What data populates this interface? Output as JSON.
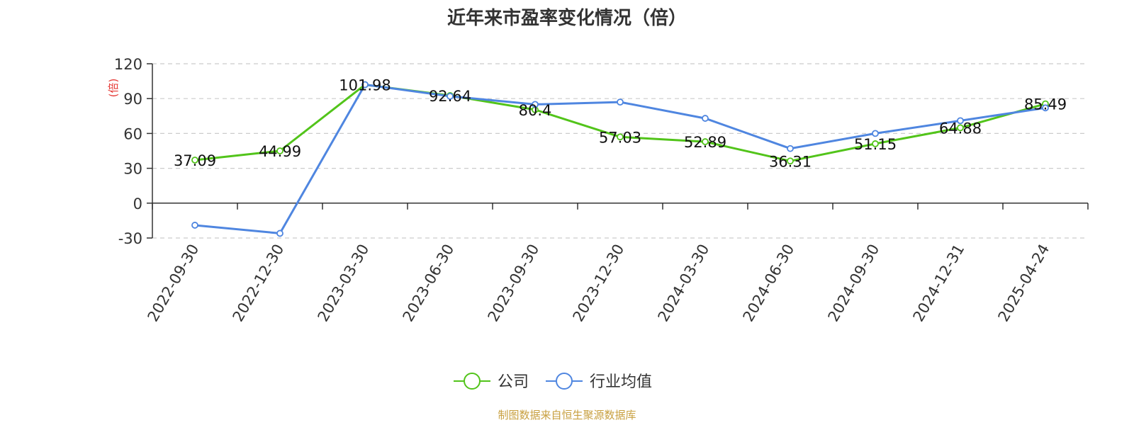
{
  "chart_data": {
    "type": "line",
    "title": "近年来市盈率变化情况（倍）",
    "ylabel": "(倍)",
    "ylim": [
      -30,
      120
    ],
    "yticks": [
      -30,
      0,
      30,
      60,
      90,
      120
    ],
    "grid": true,
    "legend": "bottom",
    "categories": [
      "2022-09-30",
      "2022-12-30",
      "2023-03-30",
      "2023-06-30",
      "2023-09-30",
      "2023-12-30",
      "2024-03-30",
      "2024-06-30",
      "2024-09-30",
      "2024-12-31",
      "2025-04-24"
    ],
    "series": [
      {
        "name": "公司",
        "color": "#52c41a",
        "values": [
          37.09,
          44.99,
          101.98,
          92.64,
          80.4,
          57.03,
          52.89,
          36.31,
          51.15,
          64.88,
          85.49
        ],
        "labels": [
          "37.09",
          "44.99",
          "101.98",
          "92.64",
          "80.4",
          "57.03",
          "52.89",
          "36.31",
          "51.15",
          "64.88",
          "85.49"
        ]
      },
      {
        "name": "行业均值",
        "color": "#4f86e0",
        "values": [
          -19,
          -26,
          102,
          92,
          85,
          87,
          73,
          47,
          60,
          71,
          82
        ]
      }
    ]
  },
  "footer": {
    "source": "制图数据来自恒生聚源数据库",
    "source_color": "#c8a040"
  },
  "colors": {
    "unit_label": "#e53935",
    "axis": "#333333",
    "grid": "#cccccc"
  }
}
